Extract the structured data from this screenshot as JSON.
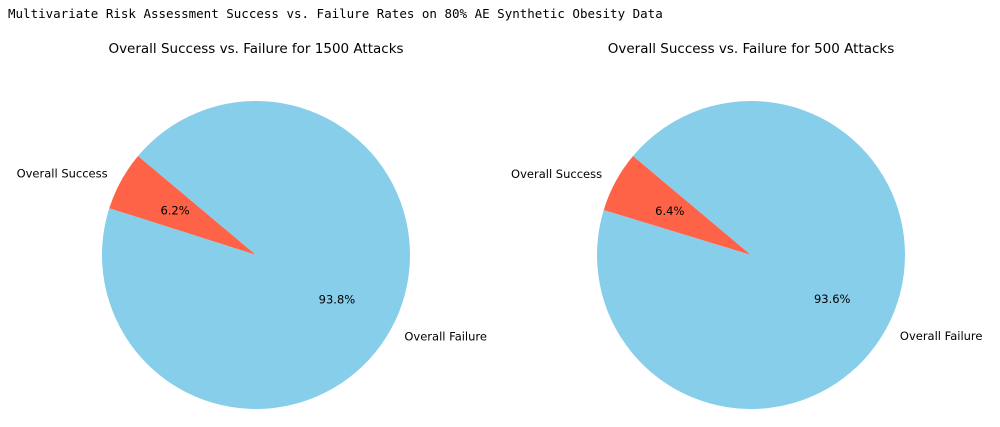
{
  "page_title": "Multivariate Risk Assessment Success vs. Failure Rates on 80% AE Synthetic Obesity Data",
  "colors": {
    "success": "#ff6347",
    "failure": "#87ceeb"
  },
  "chart_data": [
    {
      "type": "pie",
      "title": "Overall Success vs. Failure for 1500 Attacks",
      "labels": [
        "Overall Success",
        "Overall Failure"
      ],
      "values": [
        6.2,
        93.8
      ],
      "value_labels": [
        "6.2%",
        "93.8%"
      ],
      "colors": [
        "#ff6347",
        "#87ceeb"
      ],
      "start_angle_deg": 140,
      "legend": "none"
    },
    {
      "type": "pie",
      "title": "Overall Success vs. Failure for 500 Attacks",
      "labels": [
        "Overall Success",
        "Overall Failure"
      ],
      "values": [
        6.4,
        93.6
      ],
      "value_labels": [
        "6.4%",
        "93.6%"
      ],
      "colors": [
        "#ff6347",
        "#87ceeb"
      ],
      "start_angle_deg": 140,
      "legend": "none"
    }
  ]
}
